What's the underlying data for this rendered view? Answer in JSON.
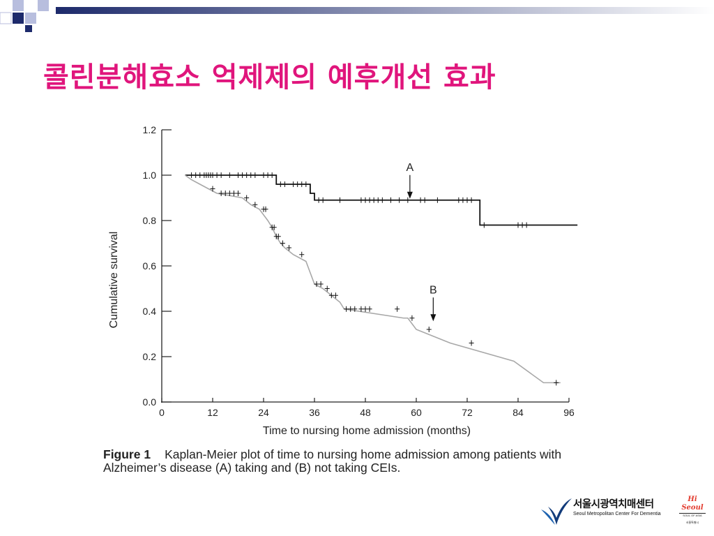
{
  "slide": {
    "title": "콜린분해효소 억제제의 예후개선 효과"
  },
  "colors": {
    "title": "#e0157c",
    "deco_navy": "#1d2a6b",
    "deco_light": "#b8bede",
    "series_a": "#111111",
    "series_b": "#a8a8a8"
  },
  "chart_data": {
    "type": "line",
    "title": "",
    "xlabel": "Time to nursing home admission (months)",
    "ylabel": "Cumulative survival",
    "xlim": [
      0,
      96
    ],
    "ylim": [
      0,
      1.2
    ],
    "x_ticks": [
      "0",
      "12",
      "24",
      "36",
      "48",
      "60",
      "72",
      "84",
      "96"
    ],
    "y_ticks": [
      "0.0",
      "0.2",
      "0.4",
      "0.6",
      "0.8",
      "1.0",
      "1.2"
    ],
    "grid": false,
    "legend": "none",
    "annotations": [
      {
        "text": "A",
        "x": 58.5,
        "y": 0.89
      },
      {
        "text": "B",
        "x": 64,
        "y": 0.35
      }
    ],
    "series": [
      {
        "name": "A",
        "style": "step",
        "color": "#111111",
        "x": [
          5.5,
          27,
          27,
          35,
          35,
          36,
          36,
          75,
          75,
          98
        ],
        "y": [
          1.0,
          1.0,
          0.96,
          0.96,
          0.92,
          0.92,
          0.89,
          0.89,
          0.78,
          0.78
        ],
        "censored_x": [
          7,
          8,
          9,
          10,
          10.5,
          11,
          11.5,
          12,
          13,
          14,
          16,
          18,
          19,
          20,
          21,
          22,
          24,
          25,
          26,
          28,
          29,
          31,
          32,
          33,
          34,
          37,
          38,
          42,
          47,
          48,
          49,
          50,
          51,
          52,
          54,
          56,
          58,
          61,
          62,
          65,
          70,
          71,
          72,
          73,
          76,
          84,
          85,
          86
        ]
      },
      {
        "name": "B",
        "style": "step",
        "color": "#a8a8a8",
        "x": [
          5.5,
          7,
          9,
          11,
          13,
          19,
          21,
          23,
          25,
          26,
          27,
          28,
          29,
          31,
          34,
          35,
          36,
          38,
          40,
          42,
          43,
          57,
          58,
          60,
          68,
          83,
          90,
          94
        ],
        "y": [
          1.0,
          0.98,
          0.96,
          0.94,
          0.92,
          0.9,
          0.87,
          0.85,
          0.8,
          0.77,
          0.73,
          0.7,
          0.68,
          0.65,
          0.62,
          0.57,
          0.52,
          0.5,
          0.47,
          0.44,
          0.41,
          0.37,
          0.37,
          0.32,
          0.26,
          0.18,
          0.085,
          0.085
        ],
        "censored_x": [
          12,
          14,
          15,
          16,
          17,
          18,
          20,
          22,
          24,
          24.5,
          26,
          26.5,
          27,
          27.5,
          28.5,
          30,
          33,
          36.5,
          37.5,
          39,
          40,
          41,
          43.5,
          44.5,
          45.5,
          47,
          48,
          49,
          55.5,
          59,
          63,
          73,
          93
        ]
      }
    ]
  },
  "caption": {
    "label": "Figure 1",
    "text": "Kaplan-Meier plot of time to nursing home admission among patients with Alzheimer’s disease (A) taking and (B) not taking CEIs."
  },
  "footer": {
    "org_name": "서울시광역치매센터",
    "org_sub": "Seoul Metropolitan Center For Dementia",
    "hi_seoul": "Hi Seoul",
    "hi_seoul_tag": "SOUL OF ASIA",
    "hi_seoul_city": "서울특별시"
  }
}
